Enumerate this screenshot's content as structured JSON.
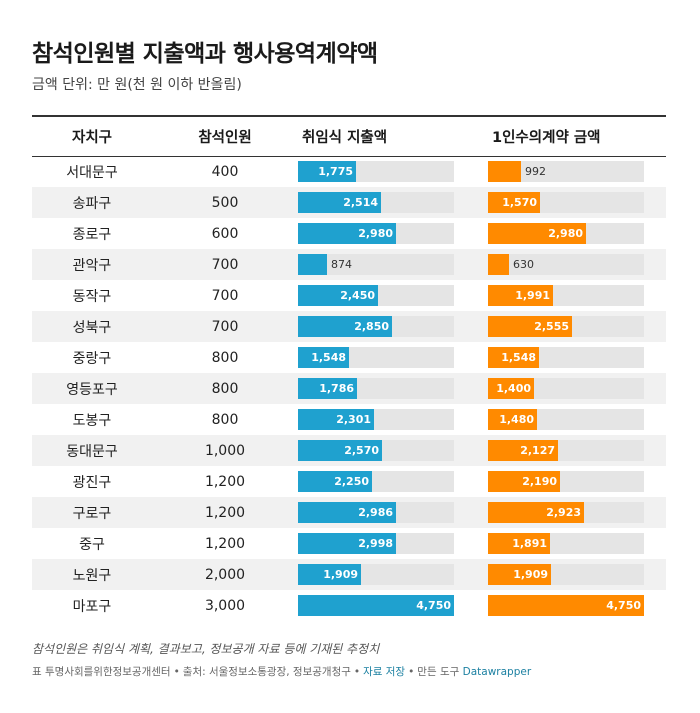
{
  "title": "참석인원별 지출액과 행사용역계약액",
  "subtitle": "금액 단위: 만 원(천 원 이하 반올림)",
  "colors": {
    "expense_bar": "#1fa1cf",
    "contract_bar": "#ff8a00",
    "track": "#e5e5e5"
  },
  "chart_data": {
    "type": "table",
    "columns": [
      "자치구",
      "참석인원",
      "취임식 지출액",
      "1인수의계약 금액"
    ],
    "bar_max": 4750,
    "rows": [
      {
        "district": "서대문구",
        "attendees": "400",
        "expense": 1775,
        "contract": 992
      },
      {
        "district": "송파구",
        "attendees": "500",
        "expense": 2514,
        "contract": 1570
      },
      {
        "district": "종로구",
        "attendees": "600",
        "expense": 2980,
        "contract": 2980
      },
      {
        "district": "관악구",
        "attendees": "700",
        "expense": 874,
        "contract": 630
      },
      {
        "district": "동작구",
        "attendees": "700",
        "expense": 2450,
        "contract": 1991
      },
      {
        "district": "성북구",
        "attendees": "700",
        "expense": 2850,
        "contract": 2555
      },
      {
        "district": "중랑구",
        "attendees": "800",
        "expense": 1548,
        "contract": 1548
      },
      {
        "district": "영등포구",
        "attendees": "800",
        "expense": 1786,
        "contract": 1400
      },
      {
        "district": "도봉구",
        "attendees": "800",
        "expense": 2301,
        "contract": 1480
      },
      {
        "district": "동대문구",
        "attendees": "1,000",
        "expense": 2570,
        "contract": 2127
      },
      {
        "district": "광진구",
        "attendees": "1,200",
        "expense": 2250,
        "contract": 2190
      },
      {
        "district": "구로구",
        "attendees": "1,200",
        "expense": 2986,
        "contract": 2923
      },
      {
        "district": "중구",
        "attendees": "1,200",
        "expense": 2998,
        "contract": 1891
      },
      {
        "district": "노원구",
        "attendees": "2,000",
        "expense": 1909,
        "contract": 1909
      },
      {
        "district": "마포구",
        "attendees": "3,000",
        "expense": 4750,
        "contract": 4750
      }
    ]
  },
  "note": "참석인원은 취임식 계획, 결과보고, 정보공개 자료 등에 기재된 추정치",
  "footer": {
    "prefix": "표 투명사회를위한정보공개센터",
    "source": "출처: 서울정보소통광장, 정보공개청구",
    "save_link": "자료 저장",
    "made_with": "만든 도구",
    "tool_link": "Datawrapper"
  }
}
